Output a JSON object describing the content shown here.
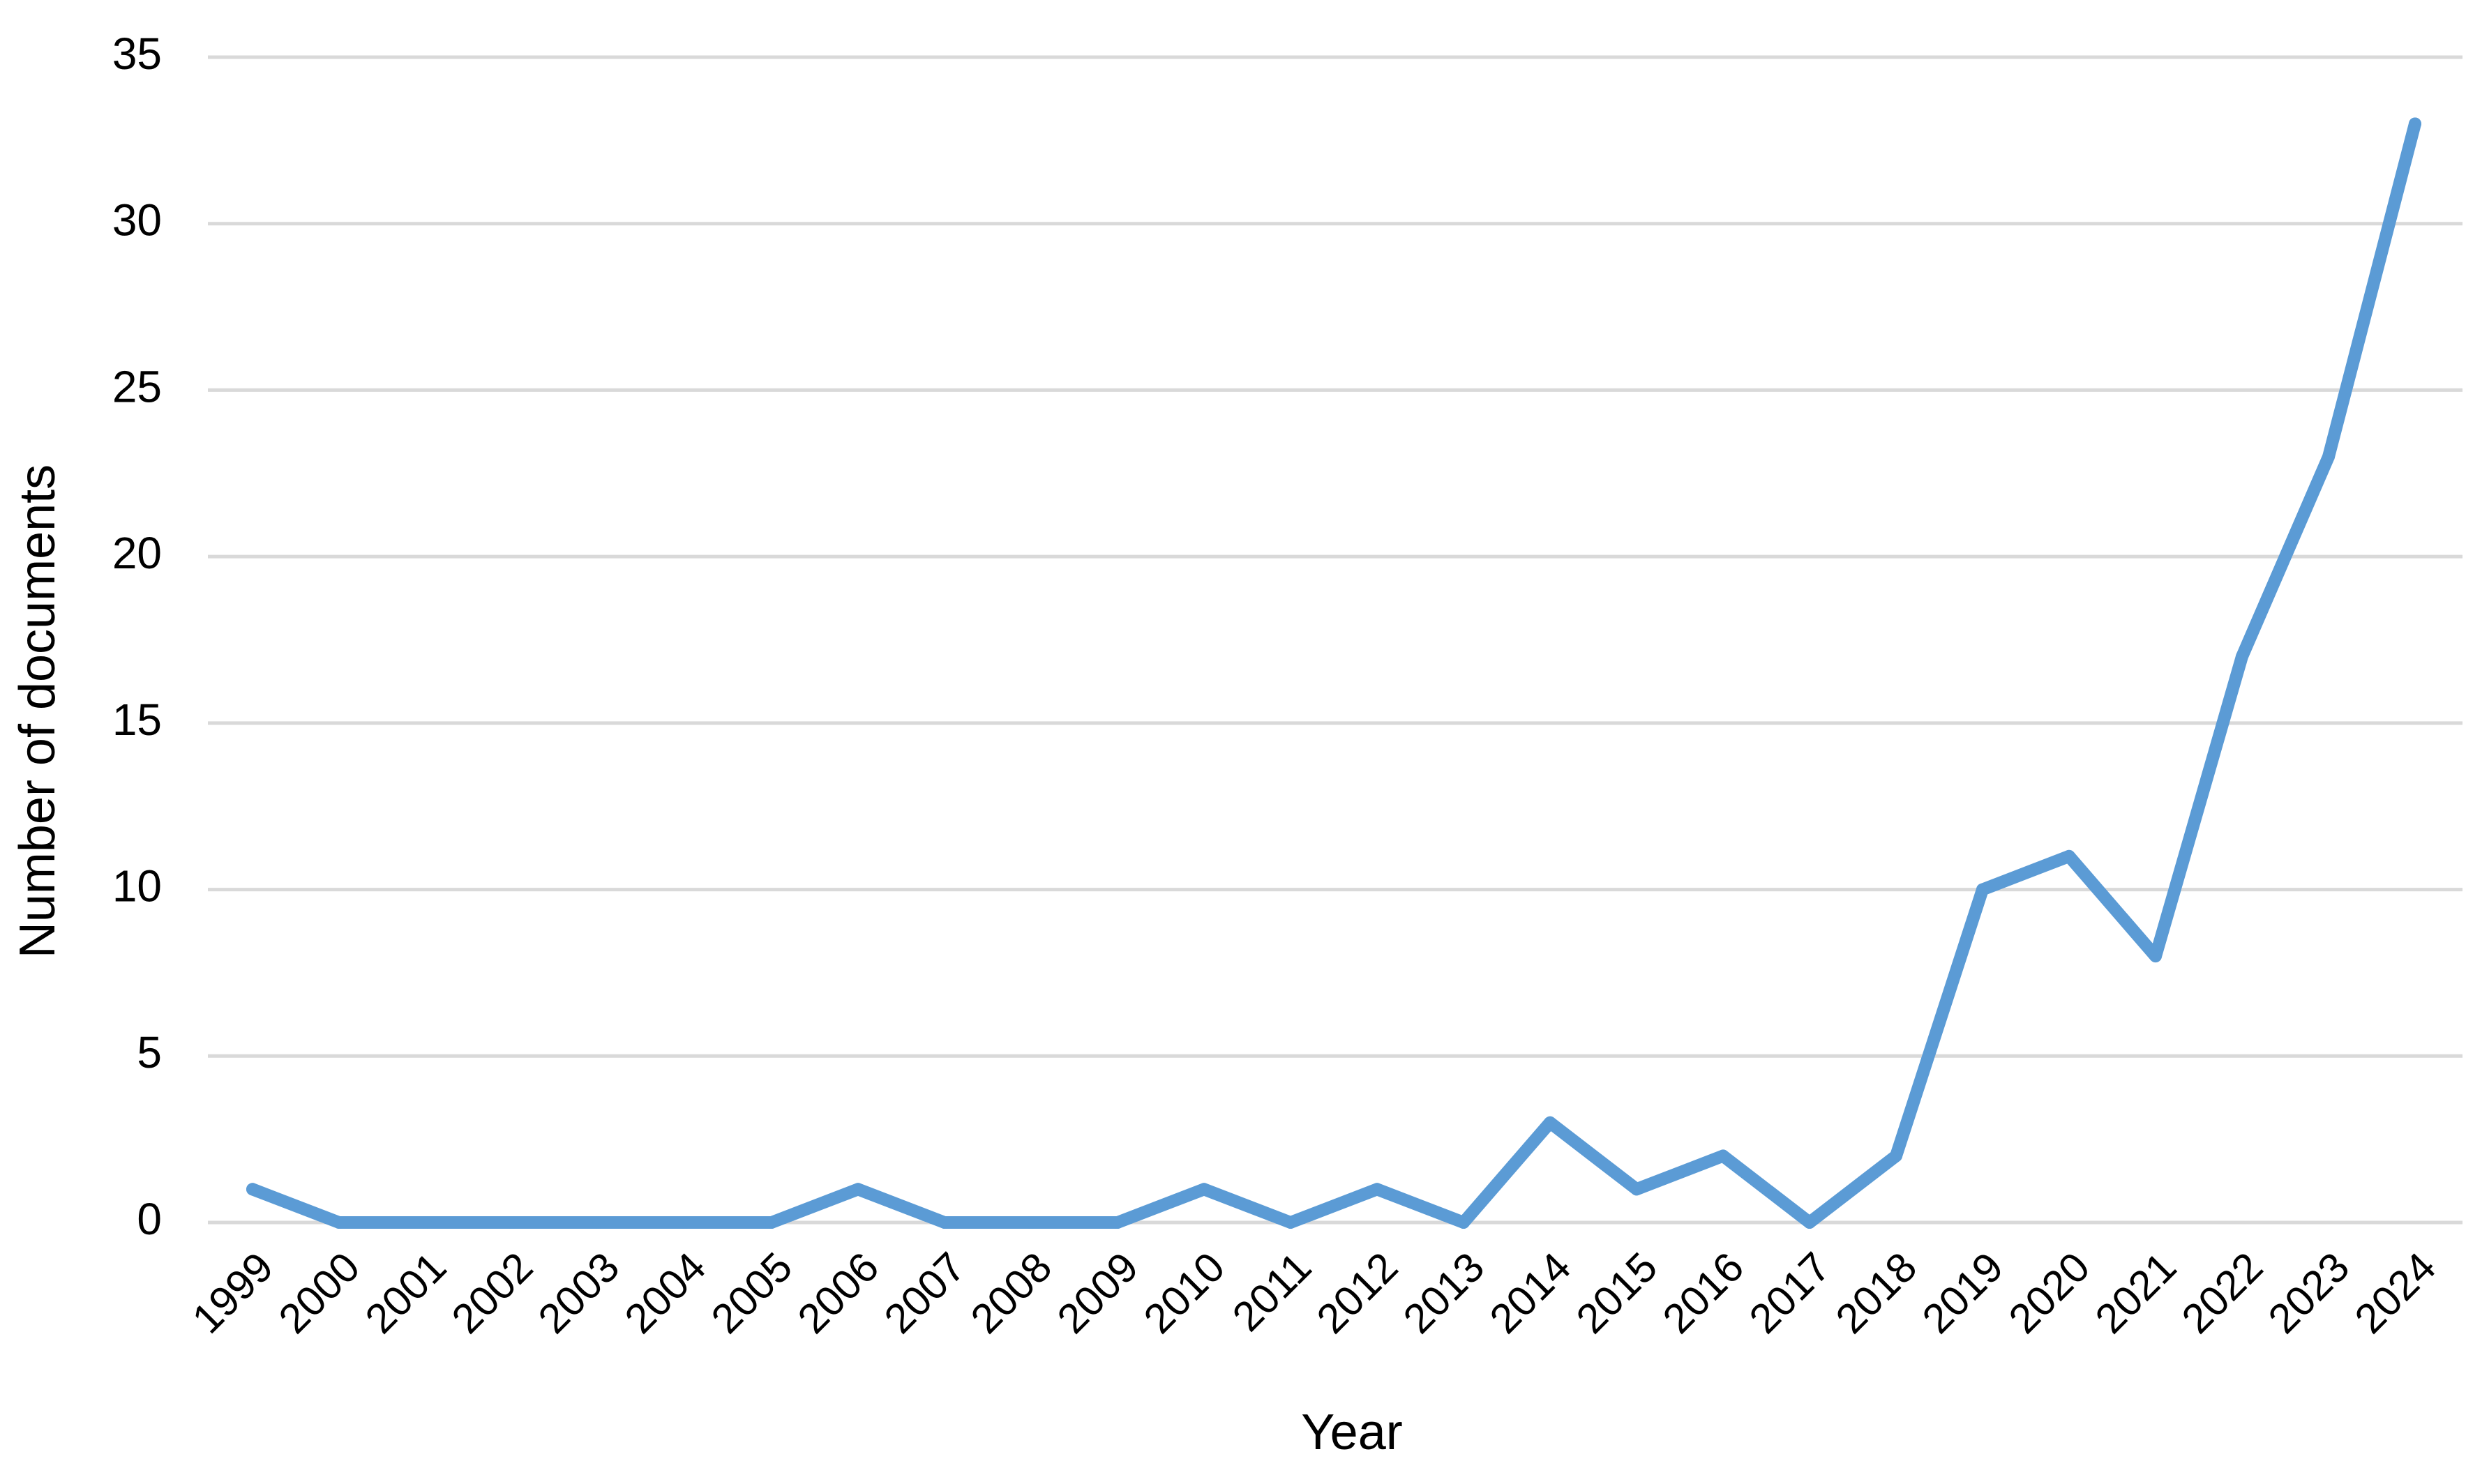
{
  "chart_data": {
    "type": "line",
    "title": "",
    "xlabel": "Year",
    "ylabel": "Number of documents",
    "categories": [
      "1999",
      "2000",
      "2001",
      "2002",
      "2003",
      "2004",
      "2005",
      "2006",
      "2007",
      "2008",
      "2009",
      "2010",
      "2011",
      "2012",
      "2013",
      "2014",
      "2015",
      "2016",
      "2017",
      "2018",
      "2019",
      "2020",
      "2021",
      "2022",
      "2023",
      "2024"
    ],
    "series": [
      {
        "values": [
          1,
          0,
          0,
          0,
          0,
          0,
          0,
          1,
          0,
          0,
          0,
          1,
          0,
          1,
          0,
          3,
          1,
          2,
          0,
          2,
          10,
          11,
          8,
          17,
          23,
          33
        ],
        "color": "#5b9bd5"
      }
    ],
    "ylim": [
      0,
      35
    ],
    "yticks": [
      0,
      5,
      10,
      15,
      20,
      25,
      30,
      35
    ],
    "grid": true,
    "gridColor": "#d9d9d9",
    "legend": "none"
  }
}
